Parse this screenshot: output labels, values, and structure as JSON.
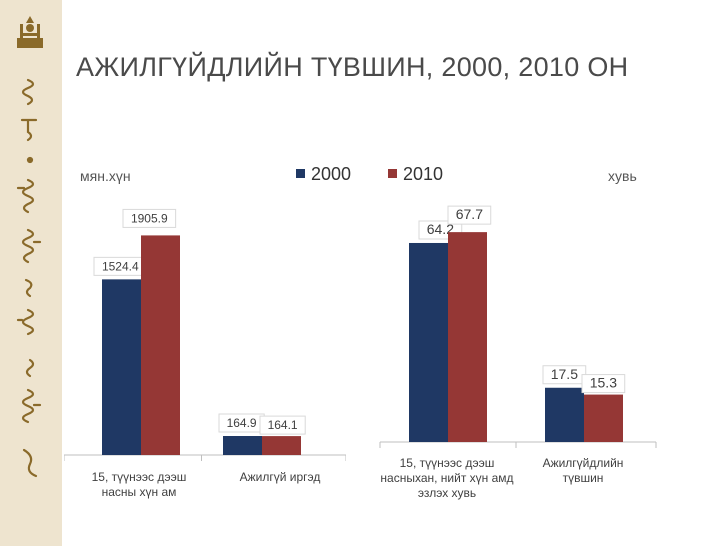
{
  "slide": {
    "title": "АЖИЛГҮЙДЛИЙН ТҮВШИН, 2000, 2010 ОН",
    "unit_left": "мян.хүн",
    "unit_right": "хувь",
    "colors": {
      "sidebar": "#eee4cf",
      "emblem": "#8a6a2a"
    }
  },
  "legend": [
    {
      "name": "2000",
      "color": "#1f3864"
    },
    {
      "name": "2010",
      "color": "#953735"
    }
  ],
  "chart_data": [
    {
      "type": "bar",
      "categories": [
        "15, түүнээс дээш насны хүн ам",
        "Ажилгүй иргэд"
      ],
      "series": [
        {
          "name": "2000",
          "values": [
            1524.4,
            164.9
          ]
        },
        {
          "name": "2010",
          "values": [
            1905.9,
            164.1
          ]
        }
      ],
      "data_labels": [
        [
          "1524.4",
          "164.9"
        ],
        [
          "1905.9",
          "164.1"
        ]
      ],
      "ylim": [
        0,
        2300
      ],
      "grid": false
    },
    {
      "type": "bar",
      "categories": [
        "15, түүнээс дээш насныхан, нийт хүн амд эзлэх хувь",
        "Ажилгүйдлийн түвшин"
      ],
      "series": [
        {
          "name": "2000",
          "values": [
            64.2,
            17.5
          ]
        },
        {
          "name": "2010",
          "values": [
            67.7,
            15.3
          ]
        }
      ],
      "data_labels": [
        [
          "64.2",
          "17.5"
        ],
        [
          "67.7",
          "15.3"
        ]
      ],
      "ylim": [
        0,
        80
      ],
      "grid": false
    }
  ]
}
